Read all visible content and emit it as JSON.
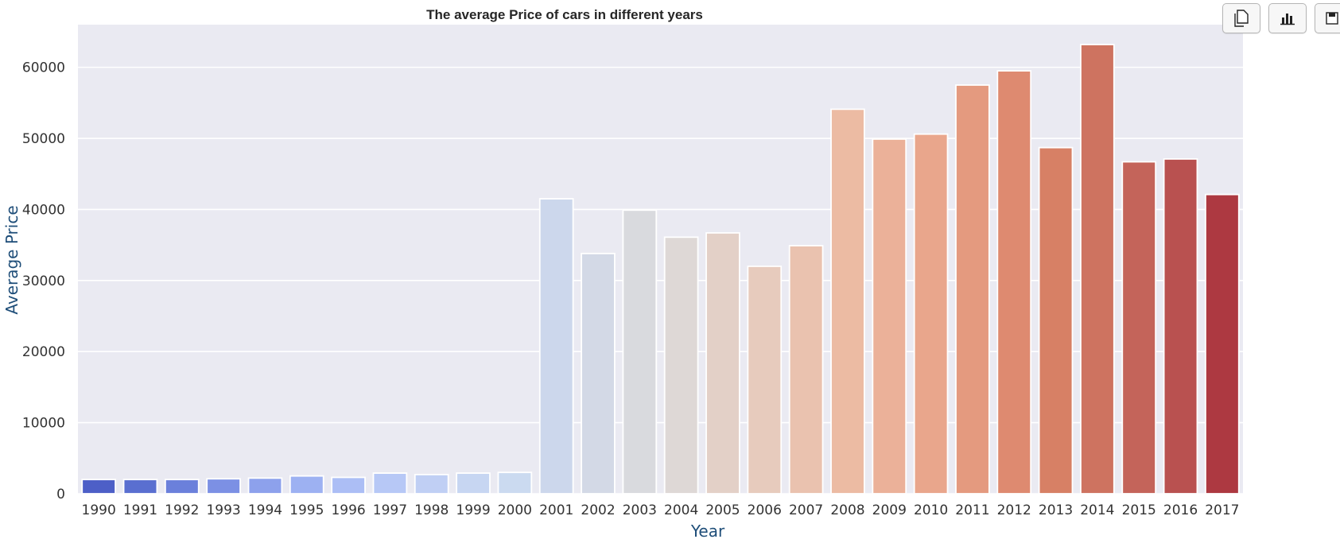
{
  "toolbar": {
    "buttons": [
      {
        "icon": "copy-icon"
      },
      {
        "icon": "bar-chart-icon"
      },
      {
        "icon": "save-icon"
      }
    ]
  },
  "chart_data": {
    "type": "bar",
    "title": "The average Price of cars in different years",
    "xlabel": "Year",
    "ylabel": "Average Price",
    "ylim": [
      0,
      66000
    ],
    "yticks": [
      0,
      10000,
      20000,
      30000,
      40000,
      50000,
      60000
    ],
    "grid": true,
    "legend": "none",
    "categories": [
      "1990",
      "1991",
      "1992",
      "1993",
      "1994",
      "1995",
      "1996",
      "1997",
      "1998",
      "1999",
      "2000",
      "2001",
      "2002",
      "2003",
      "2004",
      "2005",
      "2006",
      "2007",
      "2008",
      "2009",
      "2010",
      "2011",
      "2012",
      "2013",
      "2014",
      "2015",
      "2016",
      "2017"
    ],
    "values": [
      2000,
      2000,
      2000,
      2100,
      2200,
      2500,
      2300,
      2900,
      2700,
      2900,
      3000,
      41500,
      33800,
      39900,
      36100,
      36700,
      32000,
      34900,
      54100,
      49900,
      50600,
      57500,
      59500,
      48700,
      63200,
      46700,
      47100,
      42100
    ],
    "colors": [
      "#4d5fc7",
      "#5a6fd0",
      "#6b80db",
      "#7c90e4",
      "#8da1ec",
      "#9db1f2",
      "#acbef5",
      "#b7c8f6",
      "#c0cff4",
      "#c7d6f2",
      "#cbdaf0",
      "#ccd7ec",
      "#d3d9e6",
      "#d9dade",
      "#ded8d6",
      "#e3d0c7",
      "#e7cbbd",
      "#eac2af",
      "#ecbba3",
      "#ebb199",
      "#e9a68c",
      "#e49a7f",
      "#de8a70",
      "#d78065",
      "#ce7360",
      "#c4645a",
      "#b95150",
      "#ad3941"
    ],
    "plot_bg": "#eaeaf2",
    "grid_color": "#ffffff"
  }
}
